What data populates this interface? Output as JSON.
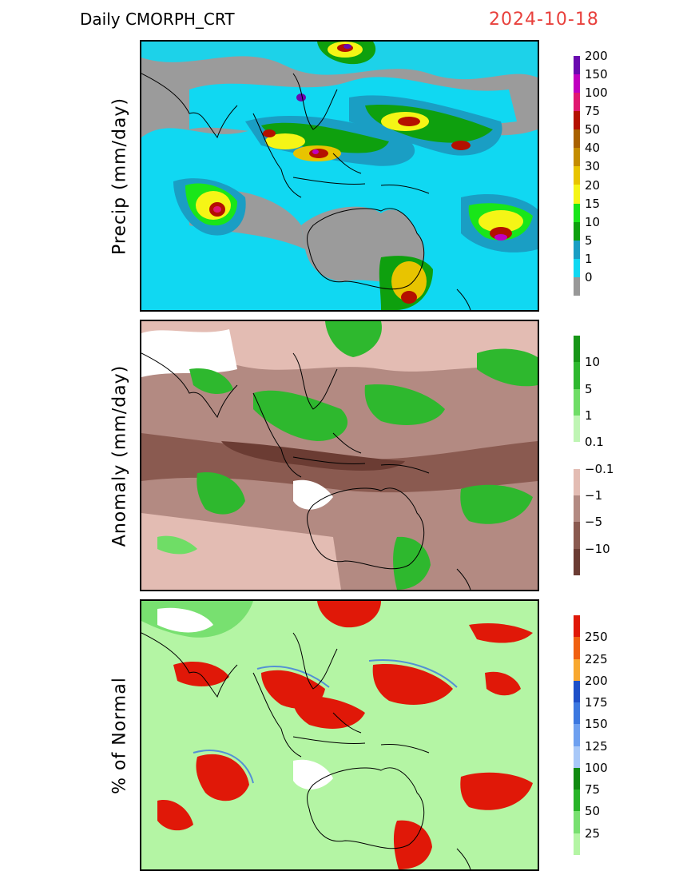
{
  "title": "Daily CMORPH_CRT",
  "date": "2024-10-18",
  "colors": {
    "date": "#e8403c",
    "precip_background": "#9b9b9b",
    "anomaly_background": "#b38a82",
    "normal_background": "#b4f5a4",
    "coastline": "#000000"
  },
  "panels": [
    {
      "ylabel": "Precip (mm/day)",
      "colorbar": {
        "segments": [
          "#989898",
          "#10d8f2",
          "#1a9ec4",
          "#0ea00e",
          "#19e619",
          "#f5f516",
          "#e8c400",
          "#c48c00",
          "#a86000",
          "#b41000",
          "#e01870",
          "#c000c0",
          "#6a0ab0"
        ],
        "labels": [
          "0",
          "1",
          "5",
          "10",
          "15",
          "20",
          "30",
          "40",
          "50",
          "75",
          "100",
          "150",
          "200"
        ]
      }
    },
    {
      "ylabel": "Anomaly (mm/day)",
      "colorbar": {
        "segments": [
          "#6b3c33",
          "#8a5a50",
          "#b38a82",
          "#e3bcb3",
          "#ffffff",
          "#bff5b4",
          "#6fdd66",
          "#2eb82e",
          "#179617"
        ],
        "labels": [
          "−10",
          "−5",
          "−1",
          "−0.1",
          "0.1",
          "1",
          "5",
          "10"
        ]
      }
    },
    {
      "ylabel": "% of Normal",
      "colorbar": {
        "segments": [
          "#b4f5a4",
          "#78e070",
          "#28b428",
          "#108a10",
          "#a8c8f8",
          "#6ea0f0",
          "#3c78e0",
          "#1e50c8",
          "#f8a830",
          "#f06010",
          "#e01808"
        ],
        "labels": [
          "25",
          "50",
          "75",
          "100",
          "125",
          "150",
          "175",
          "200",
          "225",
          "250"
        ]
      }
    }
  ]
}
